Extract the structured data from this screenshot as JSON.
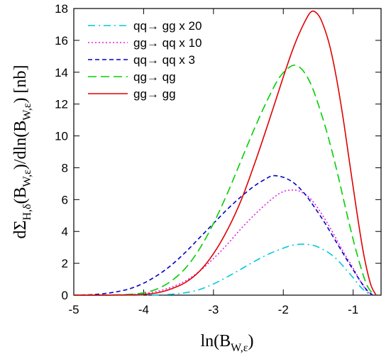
{
  "chart_data": {
    "type": "line",
    "title": "",
    "xlabel": {
      "main": "ln(B",
      "sub": "W,ε",
      "tail": ")"
    },
    "ylabel": {
      "p1": "dΣ",
      "s1": "H,δ",
      "p2": "(B",
      "s2": "W,ε",
      "p3": ")/dln(B",
      "s3": "W,ε",
      "p4": ") [nb]"
    },
    "xlim": [
      -5,
      -0.6
    ],
    "ylim": [
      0,
      18
    ],
    "xticks": [
      -5,
      -4,
      -3,
      -2,
      -1
    ],
    "xtick_labels": [
      "-5",
      "-4",
      "-3",
      "-2",
      "-1"
    ],
    "yticks": [
      0,
      2,
      4,
      6,
      8,
      10,
      12,
      14,
      16,
      18
    ],
    "ytick_labels": [
      "0",
      "2",
      "4",
      "6",
      "8",
      "10",
      "12",
      "14",
      "16",
      "18"
    ],
    "legend_position": "top-left",
    "series": [
      {
        "name": "qq→ gg x 20",
        "color": "#00c8e0",
        "dash": "dashdot",
        "points": [
          [
            -5,
            0
          ],
          [
            -4.5,
            0
          ],
          [
            -4,
            0
          ],
          [
            -3.8,
            0.02
          ],
          [
            -3.6,
            0.06
          ],
          [
            -3.4,
            0.15
          ],
          [
            -3.2,
            0.35
          ],
          [
            -3,
            0.7
          ],
          [
            -2.8,
            1.15
          ],
          [
            -2.6,
            1.65
          ],
          [
            -2.4,
            2.15
          ],
          [
            -2.2,
            2.6
          ],
          [
            -2,
            2.95
          ],
          [
            -1.85,
            3.15
          ],
          [
            -1.7,
            3.2
          ],
          [
            -1.55,
            3.1
          ],
          [
            -1.4,
            2.8
          ],
          [
            -1.3,
            2.5
          ],
          [
            -1.2,
            2.1
          ],
          [
            -1.1,
            1.6
          ],
          [
            -1,
            1.1
          ],
          [
            -0.9,
            0.55
          ],
          [
            -0.8,
            0.15
          ],
          [
            -0.72,
            0
          ]
        ]
      },
      {
        "name": "gg→ qq x 10",
        "color": "#e020e0",
        "dash": "dotted",
        "points": [
          [
            -5,
            0
          ],
          [
            -4.5,
            0
          ],
          [
            -4.2,
            0.03
          ],
          [
            -4,
            0.1
          ],
          [
            -3.8,
            0.25
          ],
          [
            -3.6,
            0.5
          ],
          [
            -3.4,
            0.9
          ],
          [
            -3.2,
            1.5
          ],
          [
            -3,
            2.3
          ],
          [
            -2.8,
            3.2
          ],
          [
            -2.6,
            4.2
          ],
          [
            -2.4,
            5.1
          ],
          [
            -2.2,
            5.9
          ],
          [
            -2.05,
            6.4
          ],
          [
            -1.9,
            6.6
          ],
          [
            -1.75,
            6.5
          ],
          [
            -1.6,
            6.0
          ],
          [
            -1.45,
            5.1
          ],
          [
            -1.3,
            4.0
          ],
          [
            -1.15,
            2.8
          ],
          [
            -1,
            1.7
          ],
          [
            -0.9,
            0.9
          ],
          [
            -0.8,
            0.25
          ],
          [
            -0.72,
            0
          ]
        ]
      },
      {
        "name": "qq→ qq x 3",
        "color": "#0000c8",
        "dash": "dashed-short",
        "points": [
          [
            -5,
            0
          ],
          [
            -4.8,
            0.02
          ],
          [
            -4.6,
            0.08
          ],
          [
            -4.4,
            0.2
          ],
          [
            -4.2,
            0.4
          ],
          [
            -4,
            0.75
          ],
          [
            -3.8,
            1.25
          ],
          [
            -3.6,
            1.9
          ],
          [
            -3.4,
            2.7
          ],
          [
            -3.2,
            3.6
          ],
          [
            -3,
            4.5
          ],
          [
            -2.8,
            5.4
          ],
          [
            -2.6,
            6.2
          ],
          [
            -2.4,
            6.9
          ],
          [
            -2.25,
            7.3
          ],
          [
            -2.15,
            7.5
          ],
          [
            -2,
            7.4
          ],
          [
            -1.85,
            7.05
          ],
          [
            -1.7,
            6.4
          ],
          [
            -1.55,
            5.5
          ],
          [
            -1.4,
            4.5
          ],
          [
            -1.25,
            3.4
          ],
          [
            -1.1,
            2.3
          ],
          [
            -1,
            1.6
          ],
          [
            -0.9,
            0.9
          ],
          [
            -0.8,
            0.3
          ],
          [
            -0.72,
            0
          ]
        ]
      },
      {
        "name": "qg→ qg",
        "color": "#00d000",
        "dash": "dashed-long",
        "points": [
          [
            -5,
            0
          ],
          [
            -4.5,
            0.01
          ],
          [
            -4.2,
            0.05
          ],
          [
            -4,
            0.15
          ],
          [
            -3.8,
            0.4
          ],
          [
            -3.6,
            0.9
          ],
          [
            -3.4,
            1.7
          ],
          [
            -3.2,
            2.9
          ],
          [
            -3,
            4.5
          ],
          [
            -2.8,
            6.4
          ],
          [
            -2.6,
            8.5
          ],
          [
            -2.4,
            10.6
          ],
          [
            -2.2,
            12.5
          ],
          [
            -2.05,
            13.7
          ],
          [
            -1.9,
            14.35
          ],
          [
            -1.8,
            14.4
          ],
          [
            -1.7,
            14.0
          ],
          [
            -1.6,
            13.2
          ],
          [
            -1.5,
            12.0
          ],
          [
            -1.4,
            10.6
          ],
          [
            -1.3,
            9.0
          ],
          [
            -1.2,
            7.2
          ],
          [
            -1.1,
            5.3
          ],
          [
            -1,
            3.5
          ],
          [
            -0.9,
            1.9
          ],
          [
            -0.8,
            0.6
          ],
          [
            -0.7,
            0
          ]
        ]
      },
      {
        "name": "gg→ gg",
        "color": "#e00000",
        "dash": "solid",
        "points": [
          [
            -5,
            0
          ],
          [
            -4.5,
            0
          ],
          [
            -4.2,
            0.02
          ],
          [
            -4,
            0.05
          ],
          [
            -3.8,
            0.15
          ],
          [
            -3.6,
            0.4
          ],
          [
            -3.4,
            0.8
          ],
          [
            -3.2,
            1.5
          ],
          [
            -3,
            2.6
          ],
          [
            -2.8,
            4.1
          ],
          [
            -2.6,
            6.0
          ],
          [
            -2.4,
            8.4
          ],
          [
            -2.2,
            11.0
          ],
          [
            -2,
            13.7
          ],
          [
            -1.85,
            15.6
          ],
          [
            -1.7,
            17.1
          ],
          [
            -1.6,
            17.8
          ],
          [
            -1.52,
            17.7
          ],
          [
            -1.45,
            17.2
          ],
          [
            -1.35,
            15.9
          ],
          [
            -1.25,
            13.9
          ],
          [
            -1.15,
            11.3
          ],
          [
            -1.05,
            8.3
          ],
          [
            -0.95,
            5.3
          ],
          [
            -0.85,
            2.6
          ],
          [
            -0.75,
            0.7
          ],
          [
            -0.67,
            0
          ]
        ]
      }
    ]
  }
}
